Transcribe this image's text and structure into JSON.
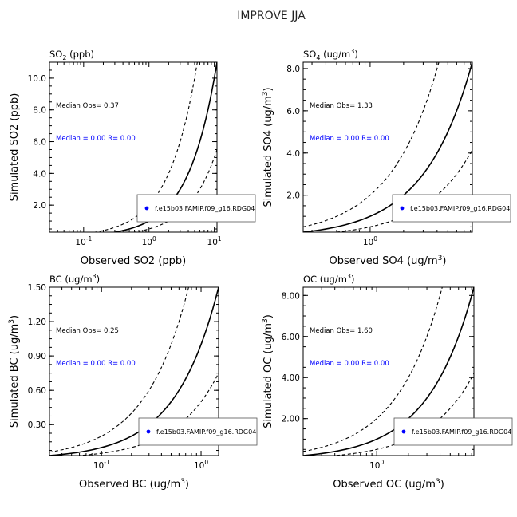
{
  "figure": {
    "title": "IMPROVE JJA"
  },
  "chart_data": [
    {
      "type": "scatter",
      "panel_title": {
        "base": "SO",
        "sub": "2",
        "rest": " (ppb)",
        "sup": ""
      },
      "xlabel": {
        "text": "Observed SO2 (ppb)",
        "sup": "",
        "close": ""
      },
      "ylabel": {
        "text": "Simulated SO2 (ppb)",
        "sup": "",
        "close": ""
      },
      "xscale": "log",
      "xlim": [
        0.03,
        11
      ],
      "ylim": [
        0.3,
        11
      ],
      "xticks": [
        {
          "value": 0.1,
          "exp": "-1"
        },
        {
          "value": 1,
          "exp": "0"
        },
        {
          "value": 10,
          "exp": "1"
        }
      ],
      "yticks": [
        {
          "value": 2,
          "label": "2.0"
        },
        {
          "value": 4,
          "label": "4.0"
        },
        {
          "value": 6,
          "label": "6.0"
        },
        {
          "value": 8,
          "label": "8.0"
        },
        {
          "value": 10,
          "label": "10.0"
        }
      ],
      "reference_lines": {
        "one_to_one": 1,
        "factor_upper": 2,
        "factor_lower": 0.5
      },
      "median_obs": "Median Obs= 0.37",
      "median_stats": "Median = 0.00 R= 0.00",
      "legend": {
        "label": "f.e15b03.FAMIP.f09_g16.RDG04",
        "placement": "lower-right",
        "marker_color": "#0000ff"
      },
      "points": []
    },
    {
      "type": "scatter",
      "panel_title": {
        "base": "SO",
        "sub": "4",
        "rest": " (ug/m",
        "sup": "3",
        "close": ")"
      },
      "xlabel": {
        "text": "Observed SO4 (ug/m",
        "sup": "3",
        "close": ")"
      },
      "ylabel": {
        "text": "Simulated SO4 (ug/m",
        "sup": "3",
        "close": ")"
      },
      "xscale": "log",
      "xlim": [
        0.25,
        8.3
      ],
      "ylim": [
        0.25,
        8.3
      ],
      "xticks": [
        {
          "value": 1,
          "exp": "0"
        }
      ],
      "yticks": [
        {
          "value": 2,
          "label": "2.0"
        },
        {
          "value": 4,
          "label": "4.0"
        },
        {
          "value": 6,
          "label": "6.0"
        },
        {
          "value": 8,
          "label": "8.0"
        }
      ],
      "reference_lines": {
        "one_to_one": 1,
        "factor_upper": 2,
        "factor_lower": 0.5
      },
      "median_obs": "Median Obs= 1.33",
      "median_stats": "Median = 0.00 R= 0.00",
      "legend": {
        "label": "f.e15b03.FAMIP.f09_g16.RDG04",
        "placement": "lower-right",
        "marker_color": "#0000ff"
      },
      "points": []
    },
    {
      "type": "scatter",
      "panel_title": {
        "base": "BC",
        "sub": "",
        "rest": " (ug/m",
        "sup": "3",
        "close": ")"
      },
      "xlabel": {
        "text": "Observed BC (ug/m",
        "sup": "3",
        "close": ")"
      },
      "ylabel": {
        "text": "Simulated BC (ug/m",
        "sup": "3",
        "close": ")"
      },
      "xscale": "log",
      "xlim": [
        0.03,
        1.5
      ],
      "ylim": [
        0.03,
        1.5
      ],
      "xticks": [
        {
          "value": 0.1,
          "exp": "-1"
        },
        {
          "value": 1,
          "exp": "0"
        }
      ],
      "yticks": [
        {
          "value": 0.3,
          "label": "0.30"
        },
        {
          "value": 0.6,
          "label": "0.60"
        },
        {
          "value": 0.9,
          "label": "0.90"
        },
        {
          "value": 1.2,
          "label": "1.20"
        },
        {
          "value": 1.5,
          "label": "1.50"
        }
      ],
      "reference_lines": {
        "one_to_one": 1,
        "factor_upper": 2,
        "factor_lower": 0.5
      },
      "median_obs": "Median Obs= 0.25",
      "median_stats": "Median = 0.00 R= 0.00",
      "legend": {
        "label": "f.e15b03.FAMIP.f09_g16.RDG04",
        "placement": "lower-right",
        "marker_color": "#0000ff"
      },
      "points": []
    },
    {
      "type": "scatter",
      "panel_title": {
        "base": "OC",
        "sub": "",
        "rest": " (ug/m",
        "sup": "3",
        "close": ")"
      },
      "xlabel": {
        "text": "Observed OC (ug/m",
        "sup": "3",
        "close": ")"
      },
      "ylabel": {
        "text": "Simulated OC (ug/m",
        "sup": "3",
        "close": ")"
      },
      "xscale": "log",
      "xlim": [
        0.2,
        8.4
      ],
      "ylim": [
        0.2,
        8.4
      ],
      "xticks": [
        {
          "value": 1,
          "exp": "0"
        }
      ],
      "yticks": [
        {
          "value": 2,
          "label": "2.00"
        },
        {
          "value": 4,
          "label": "4.00"
        },
        {
          "value": 6,
          "label": "6.00"
        },
        {
          "value": 8,
          "label": "8.00"
        }
      ],
      "reference_lines": {
        "one_to_one": 1,
        "factor_upper": 2,
        "factor_lower": 0.5
      },
      "median_obs": "Median Obs= 1.60",
      "median_stats": "Median = 0.00 R= 0.00",
      "legend": {
        "label": "f.e15b03.FAMIP.f09_g16.RDG04",
        "placement": "lower-right",
        "marker_color": "#0000ff"
      },
      "points": []
    }
  ]
}
